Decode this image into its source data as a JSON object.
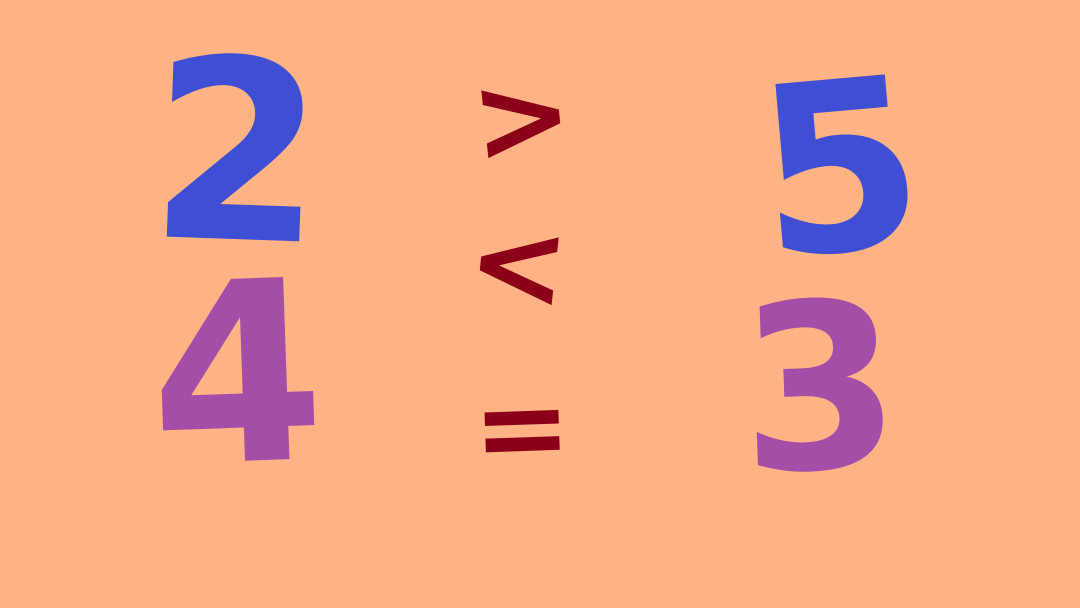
{
  "background_color": "#ffb385",
  "colors": {
    "blue": "#3f4fd4",
    "purple": "#a54ea8",
    "dark_red": "#8b0018"
  },
  "numbers": {
    "top_left": {
      "value": "2",
      "color": "#3f4fd4"
    },
    "bottom_left": {
      "value": "4",
      "color": "#a54ea8"
    },
    "top_right": {
      "value": "5",
      "color": "#3f4fd4"
    },
    "bottom_right": {
      "value": "3",
      "color": "#a54ea8"
    }
  },
  "symbols": {
    "greater": {
      "value": ">",
      "color": "#8b0018"
    },
    "less": {
      "value": "<",
      "color": "#8b0018"
    },
    "equal": {
      "value": "=",
      "color": "#8b0018"
    }
  }
}
